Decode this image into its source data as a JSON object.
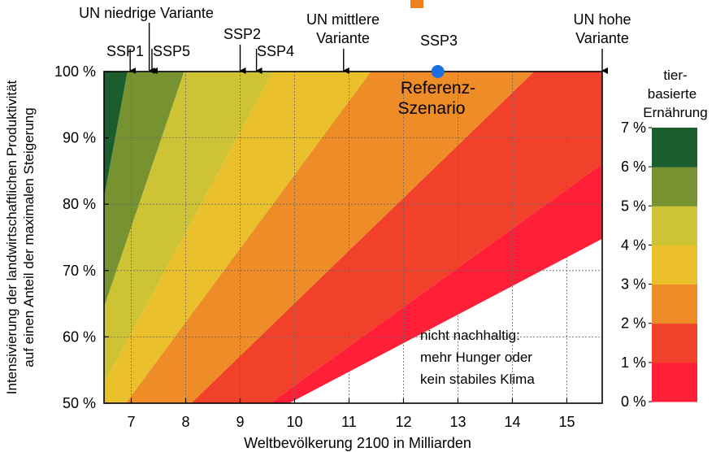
{
  "chart_data": {
    "type": "area",
    "title": "",
    "xlabel": "Weltbevölkerung 2100 in Milliarden",
    "ylabel_line1": "Intensivierung der landwirtschaftlichen Produktivität",
    "ylabel_line2": "auf einen Anteil der maximalen Steigerung",
    "xlim": [
      6.5,
      15.65
    ],
    "ylim": [
      50,
      100
    ],
    "x_ticks": [
      "7",
      "8",
      "9",
      "10",
      "11",
      "12",
      "13",
      "14",
      "15"
    ],
    "x_tick_values": [
      7,
      8,
      9,
      10,
      11,
      12,
      13,
      14,
      15
    ],
    "y_ticks": [
      "50 %",
      "60 %",
      "70 %",
      "80 %",
      "90 %",
      "100 %"
    ],
    "y_tick_values": [
      50,
      60,
      70,
      80,
      90,
      100
    ],
    "grid": true,
    "bands": [
      {
        "level": "6–7 %",
        "color": "#1a5e30",
        "boundary_x_at_y50": 5.8,
        "boundary_x_at_y100": 6.93
      },
      {
        "level": "5–6 %",
        "color": "#779331",
        "boundary_x_at_y50": 5.9,
        "boundary_x_at_y100": 7.97
      },
      {
        "level": "4–5 %",
        "color": "#cdc334",
        "boundary_x_at_y50": 6.3,
        "boundary_x_at_y100": 9.6
      },
      {
        "level": "3–4 %",
        "color": "#eac02c",
        "boundary_x_at_y50": 6.9,
        "boundary_x_at_y100": 11.4
      },
      {
        "level": "2–3 %",
        "color": "#ee8c28",
        "boundary_x_at_y50": 8.1,
        "boundary_x_at_y100": 14.4
      },
      {
        "level": "1–2 %",
        "color": "#f1412b",
        "boundary_x_at_y50": 9.55,
        "boundary_x_at_y100": 18.0
      },
      {
        "level": "0–1 %",
        "color": "#ff1f36"
      }
    ],
    "unsustainable_region_color": "#ffffff",
    "annotation_unsustainable": [
      "nicht nachhaltig:",
      "mehr Hunger oder",
      "kein stabiles Klima"
    ],
    "reference_point": {
      "x": 12.63,
      "y": 100,
      "label": [
        "Referenz-",
        "Szenario"
      ],
      "color": "#1c6fe0"
    },
    "scenario_markers": [
      {
        "label": "SSP1",
        "x": 6.98
      },
      {
        "label": "SSP5",
        "x": 7.38
      },
      {
        "label": "SSP2",
        "x": 9.0
      },
      {
        "label": "SSP4",
        "x": 9.3
      },
      {
        "label": "SSP3",
        "x": 12.63
      }
    ],
    "un_markers": [
      {
        "label": [
          "UN niedrige Variante"
        ],
        "x": 7.33
      },
      {
        "label": [
          "UN mittlere",
          "Variante"
        ],
        "x": 10.9
      },
      {
        "label": [
          "UN hohe",
          "Variante"
        ],
        "x": 15.65
      }
    ],
    "legend": {
      "title": [
        "tier-",
        "basierte",
        "Ernährung"
      ],
      "ticks": [
        "0 %",
        "1 %",
        "2 %",
        "3 %",
        "4 %",
        "5 %",
        "6 %",
        "7 %"
      ],
      "colors": [
        "#ff1f36",
        "#f1412b",
        "#ee8c28",
        "#eac02c",
        "#cdc334",
        "#779331",
        "#1a5e30"
      ]
    },
    "accent_top_color": "#f07f1e"
  }
}
